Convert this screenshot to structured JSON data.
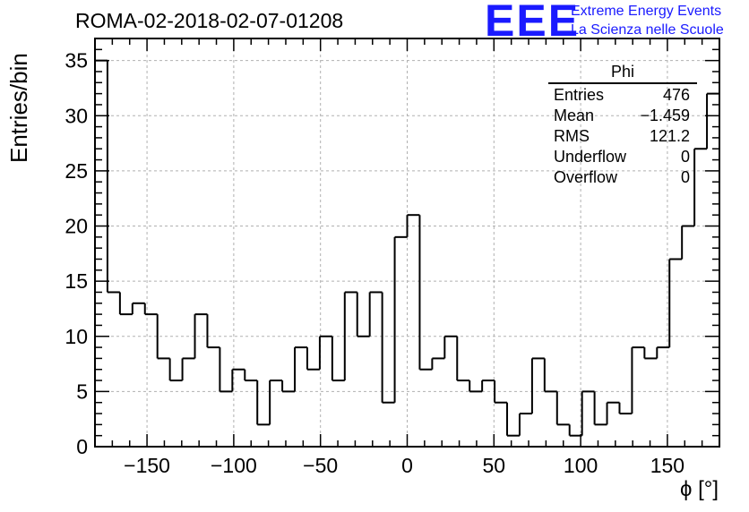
{
  "header": {
    "run_title": "ROMA-02-2018-02-07-01208",
    "logo_mark": "EEE",
    "logo_line1": "Extreme Energy Events",
    "logo_line2": "La Scienza nelle Scuole"
  },
  "stats_box": {
    "name": "Phi",
    "rows": [
      {
        "label": "Entries",
        "value": "476"
      },
      {
        "label": "Mean",
        "value": "−1.459"
      },
      {
        "label": "RMS",
        "value": "121.2"
      },
      {
        "label": "Underflow",
        "value": "0"
      },
      {
        "label": "Overflow",
        "value": "0"
      }
    ]
  },
  "chart_data": {
    "type": "bar",
    "style": "step-histogram",
    "xlabel": "ϕ [°]",
    "ylabel": "Entries/bin",
    "xlim": [
      -180,
      180
    ],
    "ylim": [
      0,
      37
    ],
    "bin_width": 7.2,
    "bin_edges_start": -180,
    "xticks": [
      -150,
      -100,
      -50,
      0,
      50,
      100,
      150
    ],
    "xtick_labels": [
      "−150",
      "−100",
      "−50",
      "0",
      "50",
      "100",
      "150"
    ],
    "yticks": [
      0,
      5,
      10,
      15,
      20,
      25,
      30,
      35
    ],
    "ytick_labels": [
      "0",
      "5",
      "10",
      "15",
      "20",
      "25",
      "30",
      "35"
    ],
    "grid": true,
    "values": [
      35,
      14,
      12,
      13,
      12,
      8,
      6,
      8,
      12,
      9,
      5,
      7,
      6,
      2,
      6,
      5,
      9,
      7,
      10,
      6,
      14,
      10,
      14,
      4,
      19,
      21,
      7,
      8,
      10,
      6,
      5,
      6,
      4,
      1,
      3,
      8,
      5,
      2,
      1,
      5,
      2,
      4,
      3,
      9,
      8,
      9,
      17,
      20,
      27,
      32
    ]
  }
}
